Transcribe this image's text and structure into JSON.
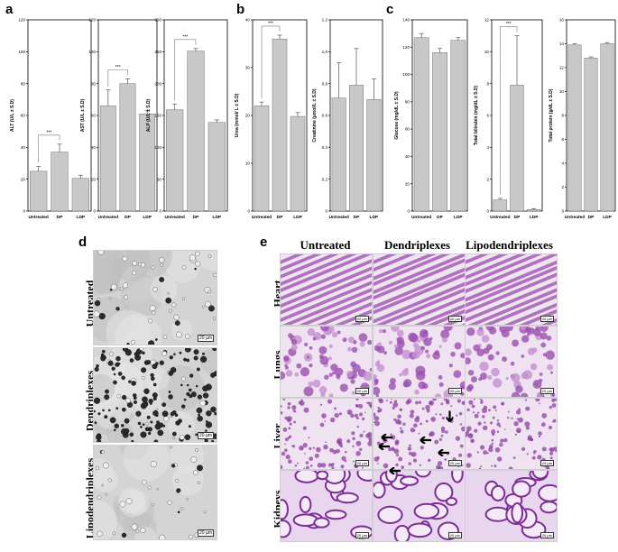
{
  "panel_letters": {
    "a": "a",
    "b": "b",
    "c": "c",
    "d": "d",
    "e": "e"
  },
  "chart_data": [
    {
      "type": "bar",
      "ylabel": "ALT (U/L ± S.D)",
      "categories": [
        "Untreated",
        "DP",
        "LDP"
      ],
      "values": [
        25,
        37,
        20.5
      ],
      "errors": [
        3,
        5,
        2
      ],
      "ylim": [
        0,
        120
      ],
      "yticks": [
        0,
        20,
        40,
        60,
        80,
        100,
        120
      ],
      "significance": "***"
    },
    {
      "type": "bar",
      "ylabel": "AST (U/L ± S.D)",
      "categories": [
        "Untreated",
        "DP",
        "LDP"
      ],
      "values": [
        66,
        80,
        61
      ],
      "errors": [
        10,
        3,
        2
      ],
      "ylim": [
        0,
        120
      ],
      "yticks": [
        0,
        20,
        40,
        60,
        80,
        100,
        120
      ],
      "significance": "***"
    },
    {
      "type": "bar",
      "ylabel": "ALP (U/L ± S.D)",
      "categories": [
        "Untreated",
        "DP",
        "LDP"
      ],
      "values": [
        159,
        251,
        139
      ],
      "errors": [
        9,
        4,
        4
      ],
      "ylim": [
        0,
        300
      ],
      "yticks": [
        0,
        50,
        100,
        150,
        200,
        250,
        300
      ],
      "significance": "***"
    },
    {
      "type": "bar",
      "ylabel": "Urea (mmol/ L ± S.D)",
      "categories": [
        "Untreated",
        "DP",
        "LDP"
      ],
      "values": [
        22,
        36,
        19.8
      ],
      "errors": [
        0.8,
        0.8,
        0.8
      ],
      "ylim": [
        0,
        40
      ],
      "yticks": [
        0,
        10,
        20,
        30,
        40
      ],
      "significance": "***"
    },
    {
      "type": "bar",
      "ylabel": "Creatinine (µmol/L ± S.D)",
      "categories": [
        "Untreated",
        "DP",
        "LDP"
      ],
      "values": [
        0.71,
        0.79,
        0.7
      ],
      "errors": [
        0.22,
        0.23,
        0.13
      ],
      "ylim": [
        0,
        1.2
      ],
      "yticks": [
        0,
        0.2,
        0.4,
        0.6,
        0.8,
        1.0,
        1.2
      ],
      "significance": ""
    },
    {
      "type": "bar",
      "ylabel": "Glucose (mg/dL ± S.D)",
      "categories": [
        "Untreated",
        "DP",
        "LDP"
      ],
      "values": [
        127,
        116,
        125
      ],
      "errors": [
        3,
        3,
        2
      ],
      "ylim": [
        0,
        140
      ],
      "yticks": [
        0,
        20,
        40,
        60,
        80,
        100,
        120,
        140
      ],
      "significance": ""
    },
    {
      "type": "bar",
      "ylabel": "Total bilirubin (mg/dL ± S.D)",
      "categories": [
        "Untreated",
        "DP",
        "LDP"
      ],
      "values": [
        0.7,
        7.9,
        0.1
      ],
      "errors": [
        0.1,
        3.1,
        0.05
      ],
      "ylim": [
        0,
        12
      ],
      "yticks": [
        0,
        2,
        4,
        6,
        8,
        10,
        12
      ],
      "significance": "***"
    },
    {
      "type": "bar",
      "ylabel": "Total protein (g/dL ± S.D)",
      "categories": [
        "Untreated",
        "DP",
        "LDP"
      ],
      "values": [
        13.9,
        12.8,
        14.0
      ],
      "errors": [
        0.1,
        0.1,
        0.1
      ],
      "ylim": [
        0,
        16
      ],
      "yticks": [
        0,
        2,
        4,
        6,
        8,
        10,
        12,
        14,
        16
      ],
      "significance": ""
    }
  ],
  "panel_d": {
    "rows": [
      "Untreated",
      "Dendriplexes",
      "Lipodendriplexes"
    ],
    "scale": "20 µm"
  },
  "panel_e": {
    "columns": [
      "Untreated",
      "Dendriplexes",
      "Lipodendriplexes"
    ],
    "rows": [
      "Heart",
      "Lungs",
      "Liver",
      "Kidneys"
    ],
    "scale": "20 µm"
  },
  "colors": {
    "bar": "#c8c8c8",
    "bar_stroke": "#707070",
    "micro_bg": "#d9d9d9",
    "tissue": "#b873c4"
  }
}
